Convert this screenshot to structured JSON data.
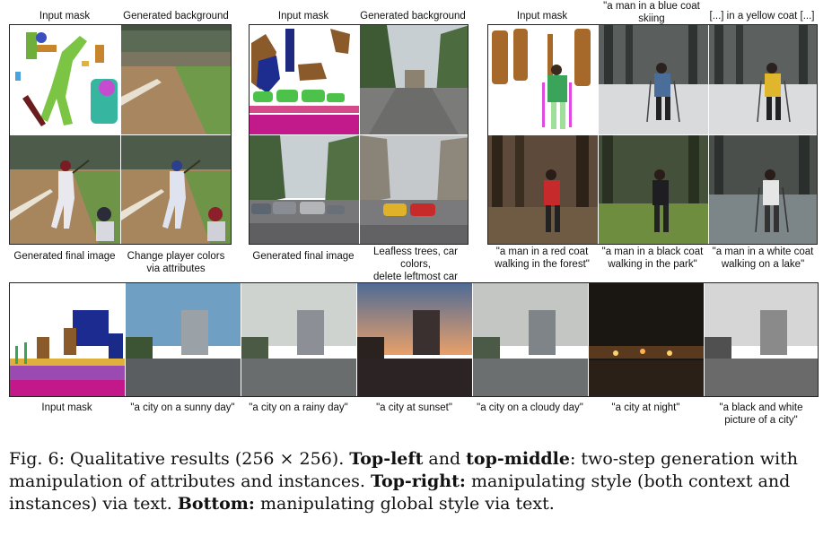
{
  "panels": {
    "top_left": {
      "labels_top": [
        "Input mask",
        "Generated background"
      ],
      "labels_bottom": [
        "Generated final image",
        "Change player colors\nvia attributes"
      ]
    },
    "top_middle": {
      "labels_top": [
        "Input mask",
        "Generated background"
      ],
      "labels_bottom": [
        "Generated final image",
        "Leafless trees, car colors,\ndelete leftmost car"
      ]
    },
    "top_right": {
      "labels_top": [
        "Input mask",
        "\"a man in a blue coat skiing\nthrough a snowy field\"",
        "[...] in a yellow coat [...]"
      ],
      "labels_bottom": [
        "\"a man in a red coat\nwalking in the forest\"",
        "\"a man in a black coat\nwalking in the park\"",
        "\"a man in a white coat\nwalking on a lake\""
      ]
    },
    "bottom": {
      "labels": [
        "Input mask",
        "\"a city on a sunny day\"",
        "\"a city on a rainy day\"",
        "\"a city at sunset\"",
        "\"a city on a cloudy day\"",
        "\"a city at night\"",
        "\"a black and white\npicture of a city\""
      ]
    }
  },
  "caption": {
    "fig_label": "Fig. 6:",
    "text_1": " Qualitative results (256 × 256). ",
    "bold_1": "Top-left",
    "text_2": " and ",
    "bold_2": "top-middle",
    "text_3": ": two-step generation with manipulation of attributes and instances. ",
    "bold_3": "Top-right:",
    "text_4": " manipulating style (both context and instances) via text. ",
    "bold_4": "Bottom:",
    "text_5": " manipulating global style via text."
  }
}
